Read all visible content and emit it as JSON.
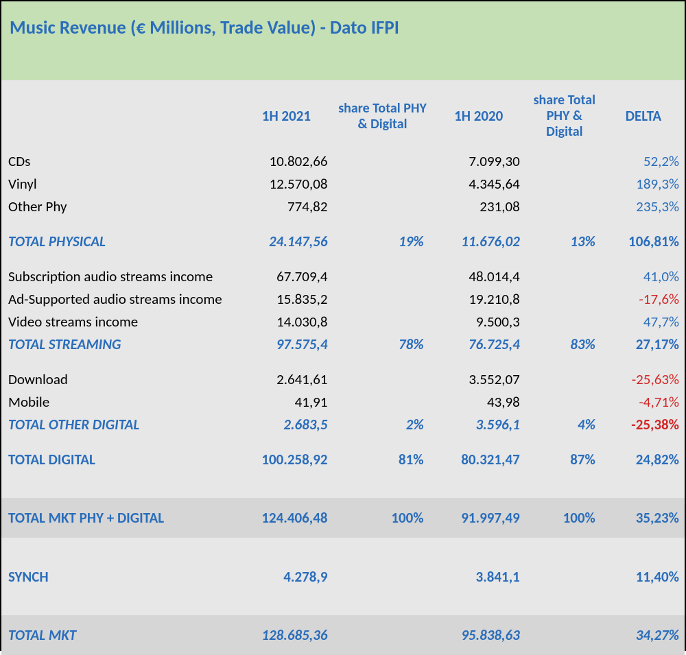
{
  "title": "Music Revenue (€ Millions, Trade Value) - Dato IFPI",
  "columns": {
    "c1": "1H 2021",
    "c2": "share Total  PHY & Digital",
    "c3": "1H 2020",
    "c4": "share Total PHY & Digital",
    "c5": "DELTA"
  },
  "rows": {
    "cds": {
      "label": "CDs",
      "v1": "10.802,66",
      "v2": "7.099,30",
      "delta": "52,2%",
      "neg": false
    },
    "vinyl": {
      "label": "Vinyl",
      "v1": "12.570,08",
      "v2": "4.345,64",
      "delta": "189,3%",
      "neg": false
    },
    "otherphy": {
      "label": "Other Phy",
      "v1": "774,82",
      "v2": "231,08",
      "delta": "235,3%",
      "neg": false
    },
    "totphy": {
      "label": "TOTAL PHYSICAL",
      "v1": "24.147,56",
      "s1": "19%",
      "v2": "11.676,02",
      "s2": "13%",
      "delta": "106,81%",
      "neg": false
    },
    "sub": {
      "label": "Subscription audio streams income",
      "v1": "67.709,4",
      "v2": "48.014,4",
      "delta": "41,0%",
      "neg": false
    },
    "ads": {
      "label": "Ad-Supported audio streams income",
      "v1": "15.835,2",
      "v2": "19.210,8",
      "delta": "-17,6%",
      "neg": true
    },
    "vid": {
      "label": "Video streams  income",
      "v1": "14.030,8",
      "v2": "9.500,3",
      "delta": "47,7%",
      "neg": false
    },
    "totstream": {
      "label": "TOTAL STREAMING",
      "v1": "97.575,4",
      "s1": "78%",
      "v2": "76.725,4",
      "s2": "83%",
      "delta": "27,17%",
      "neg": false
    },
    "dl": {
      "label": "Download",
      "v1": "2.641,61",
      "v2": "3.552,07",
      "delta": "-25,63%",
      "neg": true
    },
    "mob": {
      "label": "Mobile",
      "v1": "41,91",
      "v2": "43,98",
      "delta": "-4,71%",
      "neg": true
    },
    "totother": {
      "label": "TOTAL OTHER DIGITAL",
      "v1": "2.683,5",
      "s1": "2%",
      "v2": "3.596,1",
      "s2": "4%",
      "delta": "-25,38%",
      "neg": true
    },
    "totdig": {
      "label": "TOTAL DIGITAL",
      "v1": "100.258,92",
      "s1": "81%",
      "v2": "80.321,47",
      "s2": "87%",
      "delta": "24,82%",
      "neg": false
    },
    "totmktpd": {
      "label": "TOTAL MKT PHY + DIGITAL",
      "v1": "124.406,48",
      "s1": "100%",
      "v2": "91.997,49",
      "s2": "100%",
      "delta": "35,23%",
      "neg": false
    },
    "synch": {
      "label": "SYNCH",
      "v1": "4.278,9",
      "v2": "3.841,1",
      "delta": "11,40%",
      "neg": false
    },
    "totmkt": {
      "label": "TOTAL MKT",
      "v1": "128.685,36",
      "v2": "95.838,63",
      "delta": "34,27%",
      "neg": false
    }
  },
  "style": {
    "title_color": "#2a6dbb",
    "header_bg": "#c5e0b4",
    "body_bg": "#e7e7e7",
    "summary_bg": "#d6d6d6",
    "blue": "#2a6dbb",
    "red": "#d32626",
    "black": "#000000",
    "border": "#000000",
    "font": "Calibri",
    "title_fontsize": 27,
    "header_fontsize": 21,
    "row_fontsize": 21
  }
}
